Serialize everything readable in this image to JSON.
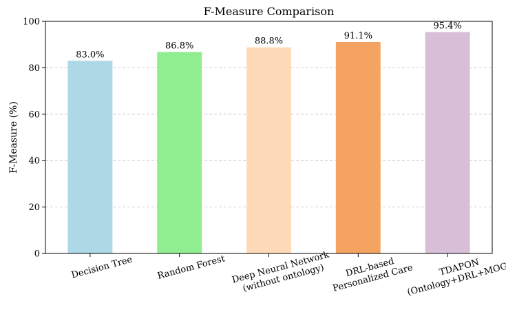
{
  "chart_data": {
    "type": "bar",
    "title": "F-Measure Comparison",
    "xlabel": "",
    "ylabel": "F-Measure (%)",
    "ylim": [
      0,
      100
    ],
    "yticks": [
      0,
      20,
      40,
      60,
      80,
      100
    ],
    "grid": "y-dashed",
    "categories": [
      [
        "Decision Tree"
      ],
      [
        "Random Forest"
      ],
      [
        "Deep Neural Network",
        "(without ontology)"
      ],
      [
        "DRL-based",
        "Personalized Care"
      ],
      [
        "TDAPON",
        "(Ontology+DRL+MOGA)"
      ]
    ],
    "values": [
      83.0,
      86.8,
      88.8,
      91.1,
      95.4
    ],
    "value_labels": [
      "83.0%",
      "86.8%",
      "88.8%",
      "91.1%",
      "95.4%"
    ],
    "colors": [
      "#add8e6",
      "#90ee90",
      "#ffdab9",
      "#f4a460",
      "#d8bfd8"
    ]
  }
}
